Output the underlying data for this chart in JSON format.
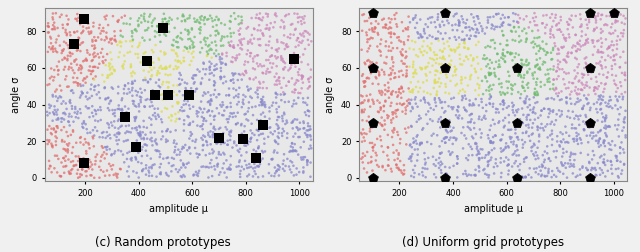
{
  "seed": 42,
  "n_points": 2000,
  "xlim": [
    50,
    1050
  ],
  "ylim": [
    -2,
    93
  ],
  "xlabel": "amplitude μ",
  "ylabel": "angle σ",
  "xticks": [
    200,
    400,
    600,
    800,
    1000
  ],
  "yticks": [
    0,
    20,
    40,
    60,
    80
  ],
  "title_c": "(c) Random prototypes",
  "title_d": "(d) Uniform grid prototypes",
  "figsize": [
    6.4,
    2.52
  ],
  "dpi": 100,
  "bg_color": "#e8e8e8",
  "random_prototypes": [
    [
      160,
      73
    ],
    [
      195,
      87
    ],
    [
      195,
      8
    ],
    [
      350,
      33
    ],
    [
      390,
      17
    ],
    [
      430,
      64
    ],
    [
      460,
      45
    ],
    [
      490,
      82
    ],
    [
      510,
      45
    ],
    [
      590,
      45
    ],
    [
      700,
      22
    ],
    [
      790,
      21
    ],
    [
      840,
      11
    ],
    [
      865,
      29
    ],
    [
      980,
      65
    ]
  ],
  "random_proto_colors": [
    "#e07070",
    "#e07070",
    "#e07070",
    "#8888cc",
    "#8888cc",
    "#dddd55",
    "#8888cc",
    "#70bb70",
    "#dddd55",
    "#8888cc",
    "#8888cc",
    "#8888cc",
    "#8888cc",
    "#8888cc",
    "#cc88bb"
  ],
  "uniform_prototypes": [
    [
      100,
      0
    ],
    [
      100,
      30
    ],
    [
      100,
      60
    ],
    [
      100,
      90
    ],
    [
      370,
      0
    ],
    [
      370,
      30
    ],
    [
      370,
      60
    ],
    [
      370,
      90
    ],
    [
      640,
      0
    ],
    [
      640,
      30
    ],
    [
      640,
      60
    ],
    [
      910,
      0
    ],
    [
      910,
      30
    ],
    [
      910,
      60
    ],
    [
      910,
      90
    ],
    [
      1000,
      90
    ]
  ],
  "uniform_proto_colors": [
    "#e07070",
    "#e07070",
    "#e07070",
    "#e07070",
    "#8888cc",
    "#8888cc",
    "#dddd55",
    "#8888cc",
    "#8888cc",
    "#8888cc",
    "#70bb70",
    "#8888cc",
    "#8888cc",
    "#cc88bb",
    "#cc88bb",
    "#cc88bb"
  ],
  "point_alpha": 0.75,
  "point_size": 3.5,
  "proto_size_sq": 55,
  "proto_size_pent": 55
}
